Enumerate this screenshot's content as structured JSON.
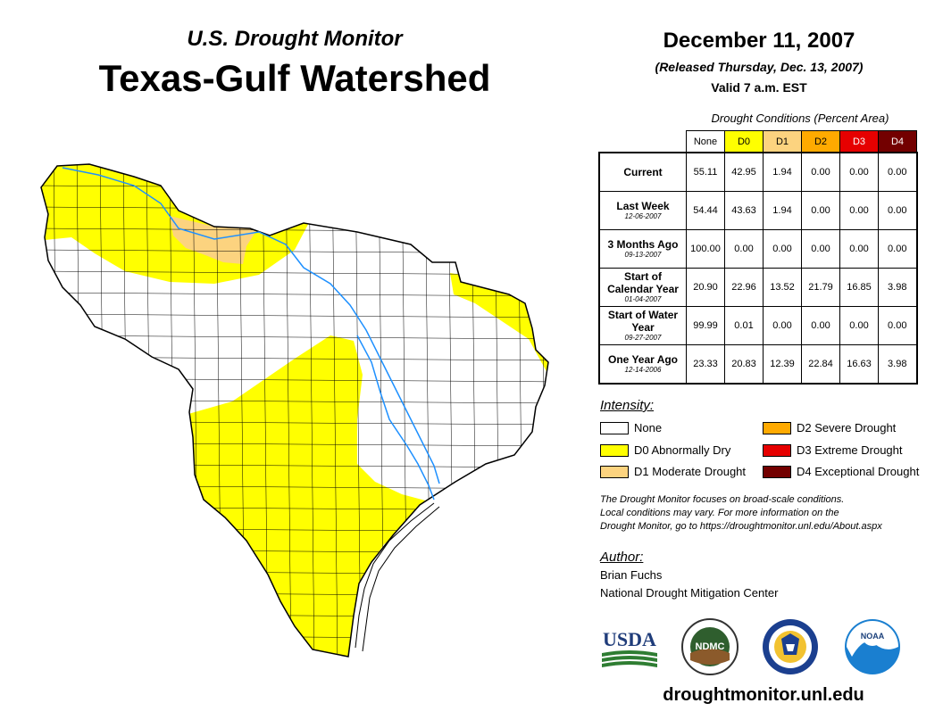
{
  "header": {
    "subtitle": "U.S. Drought Monitor",
    "title": "Texas-Gulf Watershed",
    "date": "December 11, 2007",
    "released": "(Released Thursday, Dec. 13, 2007)",
    "valid": "Valid 7 a.m. EST"
  },
  "colors": {
    "none": "#ffffff",
    "d0": "#ffff00",
    "d1": "#fcd37f",
    "d2": "#ffaa00",
    "d3": "#e60000",
    "d4": "#730000",
    "river": "#1e90ff",
    "county_line": "#000000"
  },
  "table": {
    "caption": "Drought Conditions (Percent Area)",
    "columns": [
      "None",
      "D0",
      "D1",
      "D2",
      "D3",
      "D4"
    ],
    "rows": [
      {
        "label": "Current",
        "date": "",
        "values": [
          "55.11",
          "42.95",
          "1.94",
          "0.00",
          "0.00",
          "0.00"
        ]
      },
      {
        "label": "Last Week",
        "date": "12-06-2007",
        "values": [
          "54.44",
          "43.63",
          "1.94",
          "0.00",
          "0.00",
          "0.00"
        ]
      },
      {
        "label": "3 Months Ago",
        "date": "09-13-2007",
        "values": [
          "100.00",
          "0.00",
          "0.00",
          "0.00",
          "0.00",
          "0.00"
        ]
      },
      {
        "label": "Start of Calendar Year",
        "date": "01-04-2007",
        "values": [
          "20.90",
          "22.96",
          "13.52",
          "21.79",
          "16.85",
          "3.98"
        ]
      },
      {
        "label": "Start of Water Year",
        "date": "09-27-2007",
        "values": [
          "99.99",
          "0.01",
          "0.00",
          "0.00",
          "0.00",
          "0.00"
        ]
      },
      {
        "label": "One Year Ago",
        "date": "12-14-2006",
        "values": [
          "23.33",
          "20.83",
          "12.39",
          "22.84",
          "16.63",
          "3.98"
        ]
      }
    ]
  },
  "legend": {
    "title": "Intensity:",
    "items": [
      {
        "key": "none",
        "label": "None"
      },
      {
        "key": "d0",
        "label": "D0 Abnormally Dry"
      },
      {
        "key": "d1",
        "label": "D1 Moderate Drought"
      },
      {
        "key": "d2",
        "label": "D2 Severe Drought"
      },
      {
        "key": "d3",
        "label": "D3 Extreme Drought"
      },
      {
        "key": "d4",
        "label": "D4 Exceptional Drought"
      }
    ]
  },
  "note": {
    "line1": "The Drought Monitor focuses on broad-scale conditions.",
    "line2": "Local conditions may vary. For more information on the",
    "line3": "Drought Monitor, go to https://droughtmonitor.unl.edu/About.aspx"
  },
  "author": {
    "title": "Author:",
    "name": "Brian Fuchs",
    "org": "National Drought Mitigation Center"
  },
  "logos": {
    "usda": "USDA",
    "ndmc": "NDMC",
    "noaa": "NOAA",
    "commerce_icon": "department-of-commerce-seal-icon"
  },
  "footer": {
    "website": "droughtmonitor.unl.edu"
  }
}
